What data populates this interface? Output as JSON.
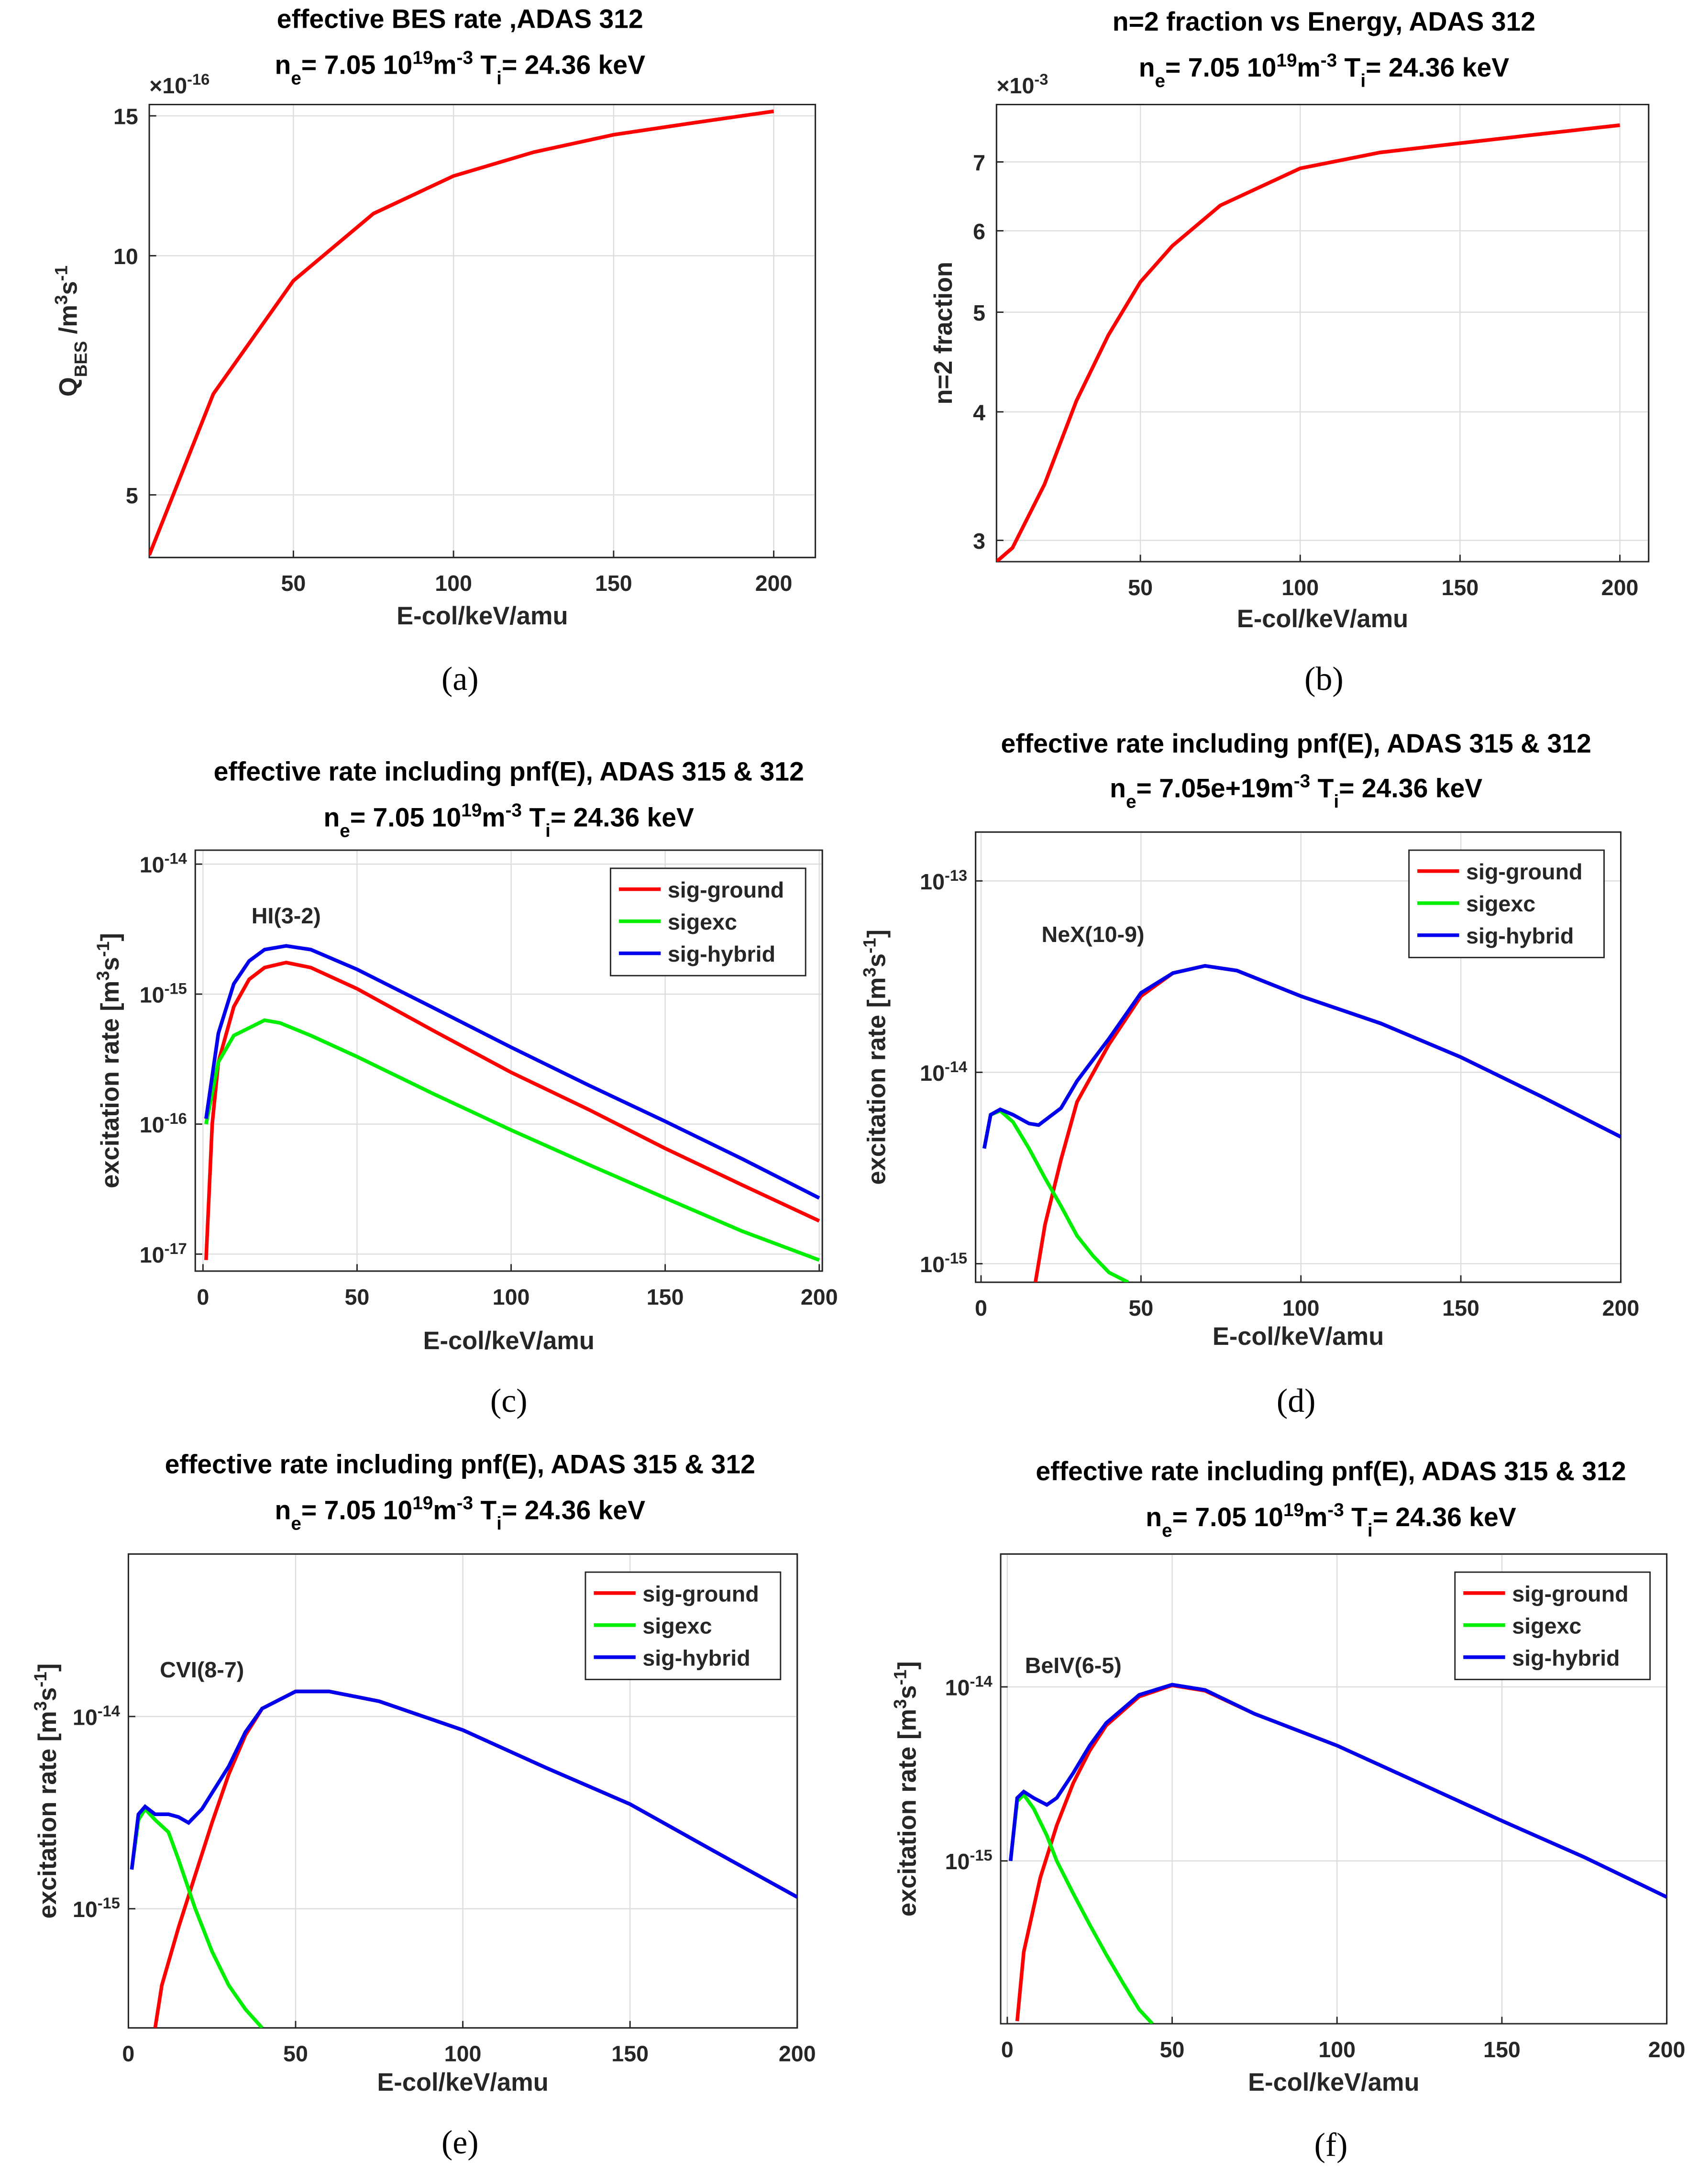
{
  "chart_data": [
    {
      "type": "line",
      "title": "effective BES rate ,ADAS 312",
      "subtitle": [
        "n",
        "e",
        "= 7.05 10",
        "19",
        "m",
        "-3",
        " T",
        "i",
        "= 24.36 keV"
      ],
      "xlabel": "E-col/keV/amu",
      "ylabel": [
        "Q",
        "BES",
        " /m",
        "3",
        "s",
        "-1"
      ],
      "y_multiplier": [
        "×10",
        "-16"
      ],
      "caption": "(a)",
      "log_y": true,
      "grid": true,
      "xlim": [
        5,
        213
      ],
      "ylim": [
        4.17,
        15.5
      ],
      "xticks": [
        50,
        100,
        150,
        200
      ],
      "yticks": [
        5,
        10,
        15
      ],
      "color": "#ff0000",
      "x": [
        5,
        25,
        50,
        75,
        100,
        125,
        150,
        175,
        200
      ],
      "values": [
        4.2,
        6.7,
        9.3,
        11.3,
        12.6,
        13.5,
        14.2,
        14.7,
        15.2
      ]
    },
    {
      "type": "line",
      "title": "n=2 fraction vs Energy, ADAS 312",
      "subtitle": [
        "n",
        "e",
        "= 7.05 10",
        "19",
        "m",
        "-3",
        " T",
        "i",
        "= 24.36 keV"
      ],
      "xlabel": "E-col/keV/amu",
      "ylabel": [
        "n=2 fraction"
      ],
      "y_multiplier": [
        "×10",
        "-3"
      ],
      "caption": "(b)",
      "log_y": true,
      "grid": true,
      "xlim": [
        5,
        209
      ],
      "ylim": [
        2.86,
        7.96
      ],
      "xticks": [
        50,
        100,
        150,
        200
      ],
      "yticks": [
        3,
        4,
        5,
        6,
        7
      ],
      "color": "#ff0000",
      "x": [
        5,
        10,
        20,
        30,
        40,
        50,
        60,
        75,
        100,
        125,
        150,
        175,
        200
      ],
      "values": [
        2.86,
        2.95,
        3.4,
        4.1,
        4.75,
        5.35,
        5.8,
        6.35,
        6.9,
        7.15,
        7.3,
        7.45,
        7.6
      ]
    },
    {
      "type": "line",
      "title": "effective rate including pnf(E), ADAS 315 & 312",
      "subtitle": [
        "n",
        "e",
        "= 7.05 10",
        "19",
        "m",
        "-3",
        " T",
        "i",
        "= 24.36 keV"
      ],
      "xlabel": "E-col/keV/amu",
      "ylabel": [
        "excitation rate [m",
        "3",
        "s",
        "-1",
        "]"
      ],
      "caption": "(c)",
      "log_y": true,
      "grid": true,
      "legend": "upper right",
      "xlim": [
        -2.5,
        201
      ],
      "ylim": [
        7.4e-18,
        1.28e-14
      ],
      "xticks": [
        0,
        50,
        100,
        150,
        200
      ],
      "yticks": [
        {
          "value": 1e-17,
          "label": [
            "10",
            "-17"
          ]
        },
        {
          "value": 1e-16,
          "label": [
            "10",
            "-16"
          ]
        },
        {
          "value": 1e-15,
          "label": [
            "10",
            "-15"
          ]
        },
        {
          "value": 1e-14,
          "label": [
            "10",
            "-14"
          ]
        }
      ],
      "annotation": {
        "text": "HI(3-2)",
        "x": 27,
        "y": 3.5e-15
      },
      "series": [
        {
          "name": "sig-ground",
          "color": "#ff0000",
          "x": [
            1,
            3,
            5,
            10,
            15,
            20,
            27,
            35,
            50,
            75,
            100,
            125,
            150,
            175,
            200
          ],
          "values": [
            9e-18,
            1e-16,
            3e-16,
            8e-16,
            1.3e-15,
            1.6e-15,
            1.75e-15,
            1.6e-15,
            1.1e-15,
            5.2e-16,
            2.5e-16,
            1.3e-16,
            6.5e-17,
            3.4e-17,
            1.8e-17
          ]
        },
        {
          "name": "sigexc",
          "color": "#00ee00",
          "x": [
            1,
            5,
            10,
            20,
            25,
            35,
            50,
            75,
            100,
            125,
            150,
            175,
            200
          ],
          "values": [
            1e-16,
            3e-16,
            4.8e-16,
            6.3e-16,
            6e-16,
            4.8e-16,
            3.3e-16,
            1.7e-16,
            9e-17,
            4.9e-17,
            2.7e-17,
            1.5e-17,
            9e-18
          ]
        },
        {
          "name": "sig-hybrid",
          "color": "#0000ee",
          "x": [
            1,
            5,
            10,
            15,
            20,
            27,
            35,
            50,
            75,
            100,
            125,
            150,
            175,
            200
          ],
          "values": [
            1.1e-16,
            5e-16,
            1.2e-15,
            1.8e-15,
            2.2e-15,
            2.35e-15,
            2.2e-15,
            1.55e-15,
            7.8e-16,
            3.9e-16,
            2e-16,
            1.05e-16,
            5.4e-17,
            2.7e-17
          ]
        }
      ]
    },
    {
      "type": "line",
      "title": "effective rate including pnf(E), ADAS 315 & 312",
      "subtitle": [
        "n",
        "e",
        "= 7.05e+19m",
        "-3",
        " T",
        "i",
        "= 24.36 keV"
      ],
      "xlabel": "E-col/keV/amu",
      "ylabel": [
        "excitation rate [m",
        "3",
        "s",
        "-1",
        "]"
      ],
      "caption": "(d)",
      "log_y": true,
      "grid": true,
      "legend": "upper right",
      "xlim": [
        -1.7,
        200
      ],
      "ylim": [
        8e-16,
        1.8e-13
      ],
      "xticks": [
        0,
        50,
        100,
        150,
        200
      ],
      "yticks": [
        {
          "value": 1e-15,
          "label": [
            "10",
            "-15"
          ]
        },
        {
          "value": 1e-14,
          "label": [
            "10",
            "-14"
          ]
        },
        {
          "value": 1e-13,
          "label": [
            "10",
            "-13"
          ]
        }
      ],
      "annotation": {
        "text": "NeX(10-9)",
        "x": 35,
        "y": 4.8e-14
      },
      "series": [
        {
          "name": "sig-ground",
          "color": "#ff0000",
          "x": [
            17,
            20,
            25,
            30,
            40,
            50,
            60,
            70,
            80,
            100,
            125,
            150,
            175,
            200
          ],
          "values": [
            8e-16,
            1.6e-15,
            3.5e-15,
            7e-15,
            1.4e-14,
            2.5e-14,
            3.3e-14,
            3.6e-14,
            3.4e-14,
            2.5e-14,
            1.8e-14,
            1.2e-14,
            7.5e-15,
            4.6e-15
          ]
        },
        {
          "name": "sigexc",
          "color": "#00ee00",
          "x": [
            1,
            3,
            6,
            10,
            15,
            20,
            25,
            30,
            35,
            40,
            46
          ],
          "values": [
            4e-15,
            6e-15,
            6.3e-15,
            5.5e-15,
            4e-15,
            2.8e-15,
            2e-15,
            1.4e-15,
            1.1e-15,
            9e-16,
            8e-16
          ]
        },
        {
          "name": "sig-hybrid",
          "color": "#0000ee",
          "x": [
            1,
            3,
            6,
            10,
            15,
            18,
            25,
            30,
            40,
            50,
            60,
            70,
            80,
            100,
            125,
            150,
            175,
            200
          ],
          "values": [
            4e-15,
            6e-15,
            6.4e-15,
            6e-15,
            5.4e-15,
            5.3e-15,
            6.5e-15,
            9e-15,
            1.5e-14,
            2.6e-14,
            3.3e-14,
            3.6e-14,
            3.4e-14,
            2.5e-14,
            1.8e-14,
            1.2e-14,
            7.5e-15,
            4.6e-15
          ]
        }
      ]
    },
    {
      "type": "line",
      "title": "effective rate including pnf(E), ADAS 315 & 312",
      "subtitle": [
        "n",
        "e",
        "= 7.05 10",
        "19",
        "m",
        "-3",
        " T",
        "i",
        "= 24.36 keV"
      ],
      "xlabel": "E-col/keV/amu",
      "ylabel": [
        "excitation rate [m",
        "3",
        "s",
        "-1",
        "]"
      ],
      "caption": "(e)",
      "log_y": true,
      "grid": true,
      "legend": "upper right",
      "xlim": [
        0,
        200
      ],
      "ylim": [
        2.4e-16,
        7e-14
      ],
      "xticks": [
        0,
        50,
        100,
        150,
        200
      ],
      "yticks": [
        {
          "value": 1e-15,
          "label": [
            "10",
            "-15"
          ]
        },
        {
          "value": 1e-14,
          "label": [
            "10",
            "-14"
          ]
        }
      ],
      "annotation": {
        "text": "CVI(8-7)",
        "x": 22,
        "y": 1.6e-14
      },
      "series": [
        {
          "name": "sig-ground",
          "color": "#ff0000",
          "x": [
            8,
            10,
            15,
            20,
            25,
            30,
            35,
            40,
            50,
            60,
            75,
            100,
            125,
            150,
            175,
            200
          ],
          "values": [
            2.4e-16,
            4e-16,
            8e-16,
            1.5e-15,
            2.8e-15,
            5e-15,
            8e-15,
            1.1e-14,
            1.35e-14,
            1.35e-14,
            1.2e-14,
            8.5e-15,
            5.4e-15,
            3.5e-15,
            2e-15,
            1.15e-15
          ]
        },
        {
          "name": "sigexc",
          "color": "#00ee00",
          "x": [
            1,
            3,
            5,
            8,
            12,
            15,
            20,
            25,
            30,
            35,
            40
          ],
          "values": [
            1.6e-15,
            2.9e-15,
            3.3e-15,
            2.9e-15,
            2.5e-15,
            1.8e-15,
            1e-15,
            6e-16,
            4e-16,
            3e-16,
            2.4e-16
          ]
        },
        {
          "name": "sig-hybrid",
          "color": "#0000ee",
          "x": [
            1,
            3,
            5,
            8,
            12,
            15,
            18,
            22,
            25,
            30,
            35,
            40,
            50,
            60,
            75,
            100,
            125,
            150,
            175,
            200
          ],
          "values": [
            1.6e-15,
            3.1e-15,
            3.4e-15,
            3.1e-15,
            3.1e-15,
            3e-15,
            2.8e-15,
            3.3e-15,
            4e-15,
            5.5e-15,
            8.3e-15,
            1.1e-14,
            1.35e-14,
            1.35e-14,
            1.2e-14,
            8.5e-15,
            5.4e-15,
            3.5e-15,
            2e-15,
            1.15e-15
          ]
        }
      ]
    },
    {
      "type": "line",
      "title": "effective rate including pnf(E), ADAS 315 & 312",
      "subtitle": [
        "n",
        "e",
        "= 7.05 10",
        "19",
        "m",
        "-3",
        " T",
        "i",
        "= 24.36 keV"
      ],
      "xlabel": "E-col/keV/amu",
      "ylabel": [
        "excitation rate [m",
        "3",
        "s",
        "-1",
        "]"
      ],
      "caption": "(f)",
      "log_y": true,
      "grid": true,
      "legend": "upper right",
      "xlim": [
        -2,
        200
      ],
      "ylim": [
        1.16e-16,
        5.8e-14
      ],
      "xticks": [
        0,
        50,
        100,
        150,
        200
      ],
      "yticks": [
        {
          "value": 1e-15,
          "label": [
            "10",
            "-15"
          ]
        },
        {
          "value": 1e-14,
          "label": [
            "10",
            "-14"
          ]
        }
      ],
      "annotation": {
        "text": "BeIV(6-5)",
        "x": 20,
        "y": 1.2e-14
      },
      "series": [
        {
          "name": "sig-ground",
          "color": "#ff0000",
          "x": [
            3,
            5,
            10,
            15,
            20,
            25,
            30,
            40,
            50,
            60,
            75,
            100,
            125,
            150,
            175,
            200
          ],
          "values": [
            1.2e-16,
            3e-16,
            8e-16,
            1.6e-15,
            2.8e-15,
            4.3e-15,
            6e-15,
            8.8e-15,
            1.02e-14,
            9.5e-15,
            7e-15,
            4.6e-15,
            2.8e-15,
            1.7e-15,
            1.05e-15,
            6.2e-16
          ]
        },
        {
          "name": "sigexc",
          "color": "#00ee00",
          "x": [
            1,
            3,
            5,
            8,
            12,
            15,
            20,
            25,
            30,
            35,
            40,
            44
          ],
          "values": [
            1e-15,
            2.2e-15,
            2.4e-15,
            2e-15,
            1.4e-15,
            1e-15,
            6.5e-16,
            4.3e-16,
            2.9e-16,
            2e-16,
            1.4e-16,
            1.16e-16
          ]
        },
        {
          "name": "sig-hybrid",
          "color": "#0000ee",
          "x": [
            1,
            3,
            5,
            8,
            12,
            15,
            20,
            25,
            30,
            40,
            50,
            60,
            75,
            100,
            125,
            150,
            175,
            200
          ],
          "values": [
            1e-15,
            2.3e-15,
            2.5e-15,
            2.3e-15,
            2.1e-15,
            2.3e-15,
            3.2e-15,
            4.6e-15,
            6.2e-15,
            9e-15,
            1.03e-14,
            9.6e-15,
            7e-15,
            4.6e-15,
            2.8e-15,
            1.7e-15,
            1.05e-15,
            6.2e-16
          ]
        }
      ]
    }
  ]
}
